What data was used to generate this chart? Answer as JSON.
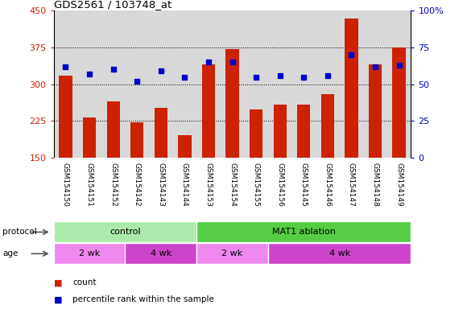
{
  "title": "GDS2561 / 103748_at",
  "samples": [
    "GSM154150",
    "GSM154151",
    "GSM154152",
    "GSM154142",
    "GSM154143",
    "GSM154144",
    "GSM154153",
    "GSM154154",
    "GSM154155",
    "GSM154156",
    "GSM154145",
    "GSM154146",
    "GSM154147",
    "GSM154148",
    "GSM154149"
  ],
  "counts": [
    318,
    232,
    265,
    222,
    252,
    195,
    340,
    372,
    248,
    258,
    258,
    280,
    435,
    340,
    375
  ],
  "percentiles": [
    62,
    57,
    60,
    52,
    59,
    55,
    65,
    65,
    55,
    56,
    55,
    56,
    70,
    62,
    63
  ],
  "ylim_left": [
    150,
    450
  ],
  "ylim_right": [
    0,
    100
  ],
  "yticks_left": [
    150,
    225,
    300,
    375,
    450
  ],
  "yticks_right": [
    0,
    25,
    50,
    75,
    100
  ],
  "bar_color": "#cc2200",
  "dot_color": "#0000cc",
  "plot_bg": "#d8d8d8",
  "xtick_bg": "#d8d8d8",
  "protocol_control_color": "#aaeaaa",
  "protocol_mat1_color": "#55cc44",
  "age_2wk_color": "#ee88ee",
  "age_4wk_color": "#cc44cc",
  "protocol_groups": [
    {
      "label": "control",
      "start": 0,
      "end": 6
    },
    {
      "label": "MAT1 ablation",
      "start": 6,
      "end": 15
    }
  ],
  "age_groups": [
    {
      "label": "2 wk",
      "start": 0,
      "end": 3
    },
    {
      "label": "4 wk",
      "start": 3,
      "end": 6
    },
    {
      "label": "2 wk",
      "start": 6,
      "end": 9
    },
    {
      "label": "4 wk",
      "start": 9,
      "end": 15
    }
  ],
  "legend_count_color": "#cc2200",
  "legend_dot_color": "#0000cc",
  "grid_yticks": [
    225,
    300,
    375
  ]
}
